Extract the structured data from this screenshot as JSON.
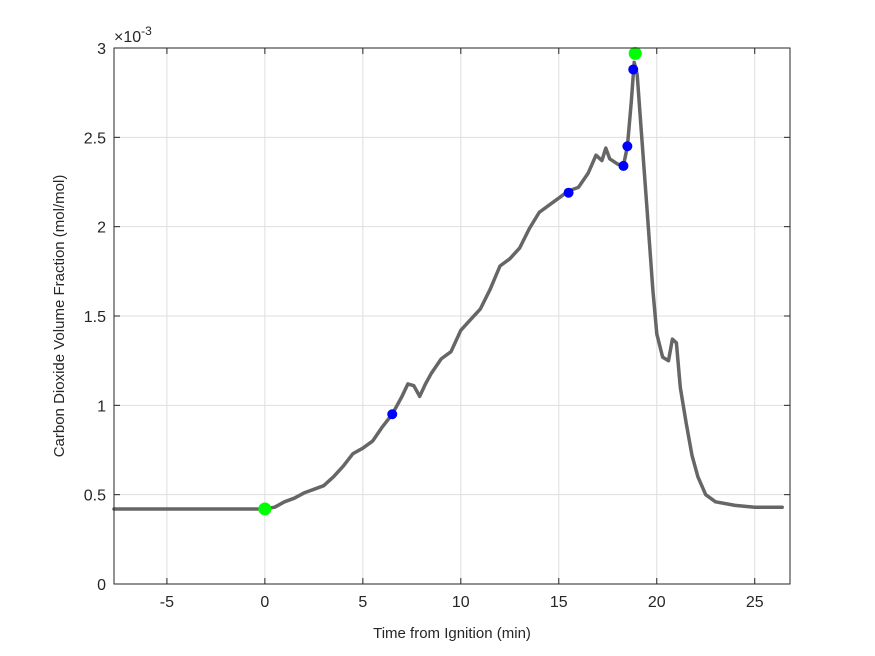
{
  "chart_data": {
    "type": "line",
    "title": "",
    "xlabel": "Time from Ignition (min)",
    "ylabel": "Carbon Dioxide Volume Fraction (mol/mol)",
    "y_exponent_label": "×10",
    "y_exponent_power": "-3",
    "xlim": [
      -7.7,
      26.8
    ],
    "ylim": [
      0,
      3
    ],
    "y_scale": 0.001,
    "grid": true,
    "legend": null,
    "x_ticks": [
      -5,
      0,
      5,
      10,
      15,
      20,
      25
    ],
    "x_tick_labels": [
      "-5",
      "0",
      "5",
      "10",
      "15",
      "20",
      "25"
    ],
    "y_ticks": [
      0,
      0.5,
      1,
      1.5,
      2,
      2.5,
      3
    ],
    "y_tick_labels": [
      "0",
      "0.5",
      "1",
      "1.5",
      "2",
      "2.5",
      "3"
    ],
    "series": [
      {
        "name": "CO2 volume fraction",
        "color": "#666666",
        "x": [
          -7.7,
          -5,
          -2,
          0,
          0.5,
          1,
          1.5,
          2,
          2.5,
          3,
          3.5,
          4,
          4.5,
          5,
          5.5,
          6,
          6.5,
          7,
          7.3,
          7.6,
          7.9,
          8.2,
          8.5,
          9,
          9.5,
          10,
          10.5,
          11,
          11.5,
          12,
          12.5,
          13,
          13.5,
          14,
          14.5,
          15,
          15.5,
          16,
          16.5,
          16.9,
          17.2,
          17.4,
          17.6,
          18,
          18.3,
          18.5,
          18.7,
          18.85,
          19,
          19.2,
          19.5,
          19.8,
          20,
          20.3,
          20.6,
          20.8,
          21,
          21.2,
          21.5,
          21.8,
          22.1,
          22.5,
          23,
          24,
          25,
          26.4
        ],
        "y": [
          0.42,
          0.42,
          0.42,
          0.42,
          0.43,
          0.46,
          0.48,
          0.51,
          0.53,
          0.55,
          0.6,
          0.66,
          0.73,
          0.76,
          0.8,
          0.88,
          0.95,
          1.05,
          1.12,
          1.11,
          1.05,
          1.12,
          1.18,
          1.26,
          1.3,
          1.42,
          1.48,
          1.54,
          1.65,
          1.78,
          1.82,
          1.88,
          1.99,
          2.08,
          2.12,
          2.16,
          2.2,
          2.22,
          2.3,
          2.4,
          2.37,
          2.44,
          2.38,
          2.35,
          2.34,
          2.45,
          2.7,
          2.92,
          2.85,
          2.55,
          2.1,
          1.65,
          1.4,
          1.27,
          1.25,
          1.37,
          1.35,
          1.1,
          0.9,
          0.72,
          0.6,
          0.5,
          0.46,
          0.44,
          0.43,
          0.43
        ]
      }
    ],
    "markers": [
      {
        "name": "start",
        "color": "#00ff00",
        "size": "large",
        "x": 0.0,
        "y": 0.42
      },
      {
        "name": "peak",
        "color": "#00ff00",
        "size": "large",
        "x": 18.9,
        "y": 2.97
      },
      {
        "name": "point-1",
        "color": "#0000ff",
        "size": "small",
        "x": 6.5,
        "y": 0.95
      },
      {
        "name": "point-2",
        "color": "#0000ff",
        "size": "small",
        "x": 15.5,
        "y": 2.19
      },
      {
        "name": "point-3",
        "color": "#0000ff",
        "size": "small",
        "x": 18.3,
        "y": 2.34
      },
      {
        "name": "point-4",
        "color": "#0000ff",
        "size": "small",
        "x": 18.5,
        "y": 2.45
      },
      {
        "name": "point-5",
        "color": "#0000ff",
        "size": "small",
        "x": 18.8,
        "y": 2.88
      }
    ]
  }
}
